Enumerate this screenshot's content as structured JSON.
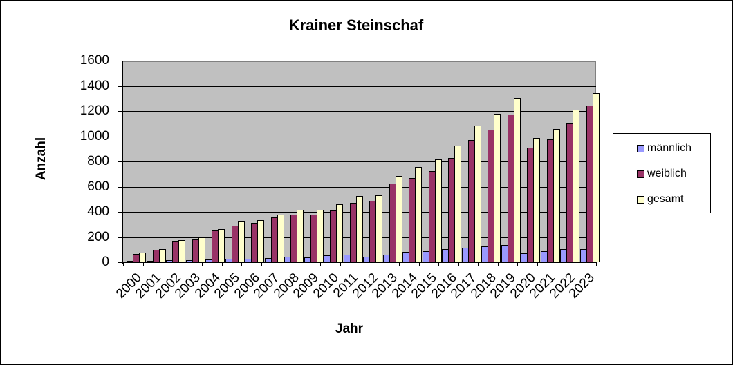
{
  "chart_data": {
    "type": "bar",
    "title": "Krainer Steinschaf",
    "xlabel": "Jahr",
    "ylabel": "Anzahl",
    "ylim": [
      0,
      1600
    ],
    "yticks": [
      0,
      200,
      400,
      600,
      800,
      1000,
      1200,
      1400,
      1600
    ],
    "grid": true,
    "legend_position": "right",
    "categories": [
      "2000",
      "2001",
      "2002",
      "2003",
      "2004",
      "2005",
      "2006",
      "2007",
      "2008",
      "2009",
      "2010",
      "2011",
      "2012",
      "2013",
      "2014",
      "2015",
      "2016",
      "2017",
      "2018",
      "2019",
      "2020",
      "2021",
      "2022",
      "2023"
    ],
    "series": [
      {
        "name": "männlich",
        "color": "#9999ff",
        "values": [
          4,
          9,
          15,
          15,
          22,
          29,
          26,
          31,
          42,
          37,
          53,
          62,
          44,
          58,
          84,
          89,
          102,
          113,
          128,
          135,
          73,
          86,
          102,
          102
        ]
      },
      {
        "name": "weiblich",
        "color": "#993366",
        "values": [
          67,
          97,
          163,
          183,
          250,
          292,
          310,
          355,
          376,
          376,
          409,
          470,
          489,
          626,
          668,
          725,
          829,
          972,
          1054,
          1175,
          911,
          977,
          1108,
          1242
        ]
      },
      {
        "name": "gesamt",
        "color": "#ffffcc",
        "values": [
          75,
          106,
          174,
          195,
          265,
          325,
          336,
          380,
          415,
          415,
          459,
          528,
          533,
          687,
          756,
          817,
          928,
          1085,
          1180,
          1304,
          988,
          1059,
          1213,
          1341
        ]
      }
    ]
  }
}
